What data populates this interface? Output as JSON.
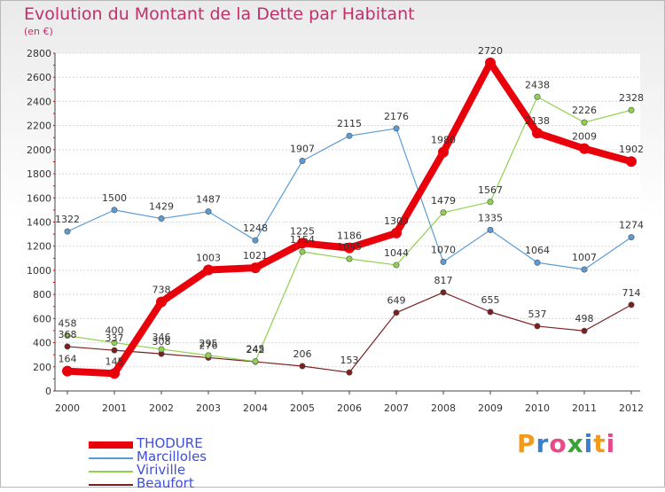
{
  "chart_data": {
    "type": "line",
    "title": "Evolution du Montant de la Dette par Habitant",
    "subtitle": "(en €)",
    "x": [
      "2000",
      "2001",
      "2002",
      "2003",
      "2004",
      "2005",
      "2006",
      "2007",
      "2008",
      "2009",
      "2010",
      "2011",
      "2012"
    ],
    "ylim": [
      0,
      2800
    ],
    "yticks": [
      0,
      200,
      400,
      600,
      800,
      1000,
      1200,
      1400,
      1600,
      1800,
      2000,
      2200,
      2400,
      2600,
      2800
    ],
    "grid": "horizontal",
    "legend_position": "bottom-left",
    "series": [
      {
        "name": "THODURE",
        "color": "#e8000b",
        "values": [
          164,
          145,
          738,
          1003,
          1021,
          1225,
          1186,
          1309,
          1980,
          2720,
          2138,
          2009,
          1902
        ]
      },
      {
        "name": "Marcilloles",
        "color": "#5b9bd5",
        "values": [
          1322,
          1500,
          1429,
          1487,
          1248,
          1907,
          2115,
          2176,
          1070,
          1335,
          1064,
          1007,
          1274
        ]
      },
      {
        "name": "Viriville",
        "color": "#8fd14f",
        "values": [
          458,
          400,
          346,
          295,
          245,
          1154,
          1095,
          1044,
          1479,
          1567,
          2438,
          2226,
          2328
        ]
      },
      {
        "name": "Beaufort",
        "color": "#7b1f1f",
        "values": [
          368,
          337,
          308,
          276,
          242,
          206,
          153,
          649,
          817,
          655,
          537,
          498,
          714
        ]
      }
    ]
  },
  "logo": {
    "text": "Proxiti"
  }
}
